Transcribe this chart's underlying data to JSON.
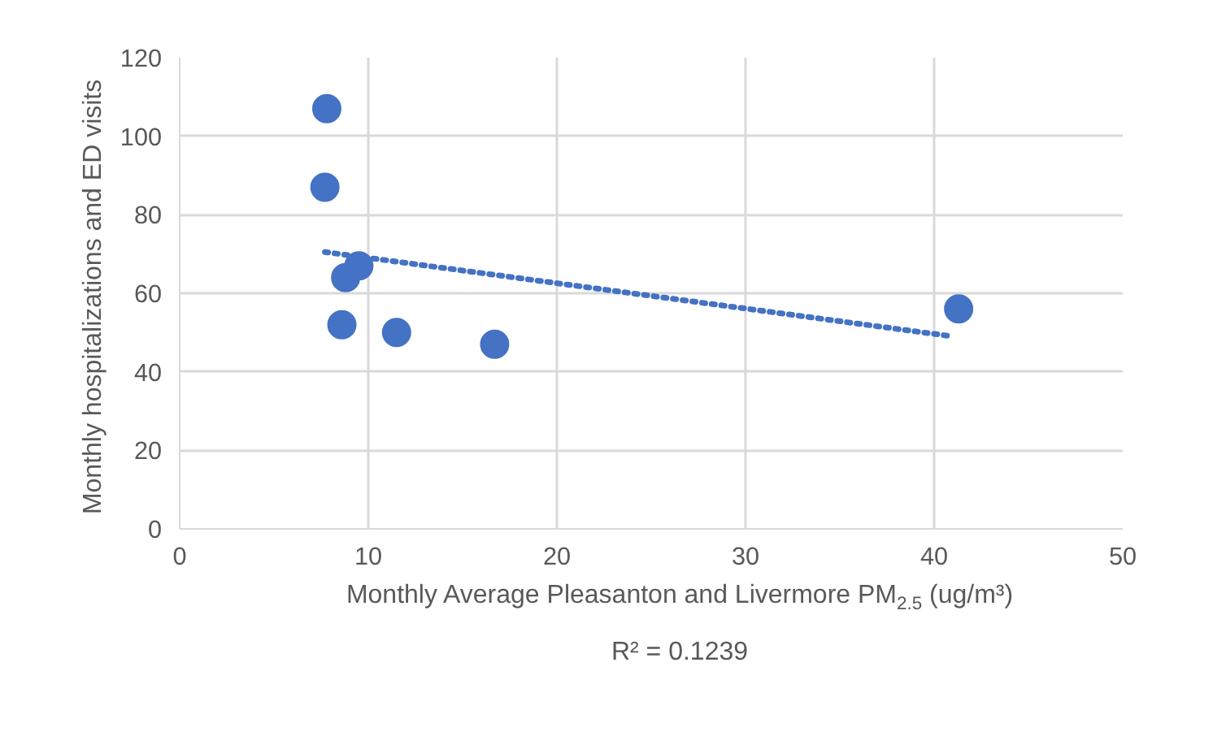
{
  "chart_data": {
    "type": "scatter",
    "xlabel": "Monthly Average Pleasanton and Livermore PM$_{2.5}$ (ug/m³)",
    "ylabel": "Monthly hospitalizations  and ED visits",
    "series": [
      {
        "color": "#4472c4",
        "x": [
          7.8,
          7.7,
          9.5,
          8.8,
          8.6,
          11.5,
          16.7,
          41.3
        ],
        "values": [
          107,
          87,
          67,
          64,
          52,
          50,
          47,
          56
        ],
        "marker": "circle"
      },
      {
        "type": "line",
        "color": "#4472c4",
        "x": [
          7.7,
          41
        ],
        "values": [
          70.5,
          49
        ],
        "line_style": "dotted"
      }
    ],
    "xlim": [
      0,
      50
    ],
    "xticks": [
      0,
      10,
      20,
      30,
      40,
      50
    ],
    "ylim": [
      0,
      120
    ],
    "yticks": [
      0,
      20,
      40,
      60,
      80,
      100,
      120
    ],
    "grid": true,
    "annotations": [
      "R² = 0.1239"
    ]
  }
}
